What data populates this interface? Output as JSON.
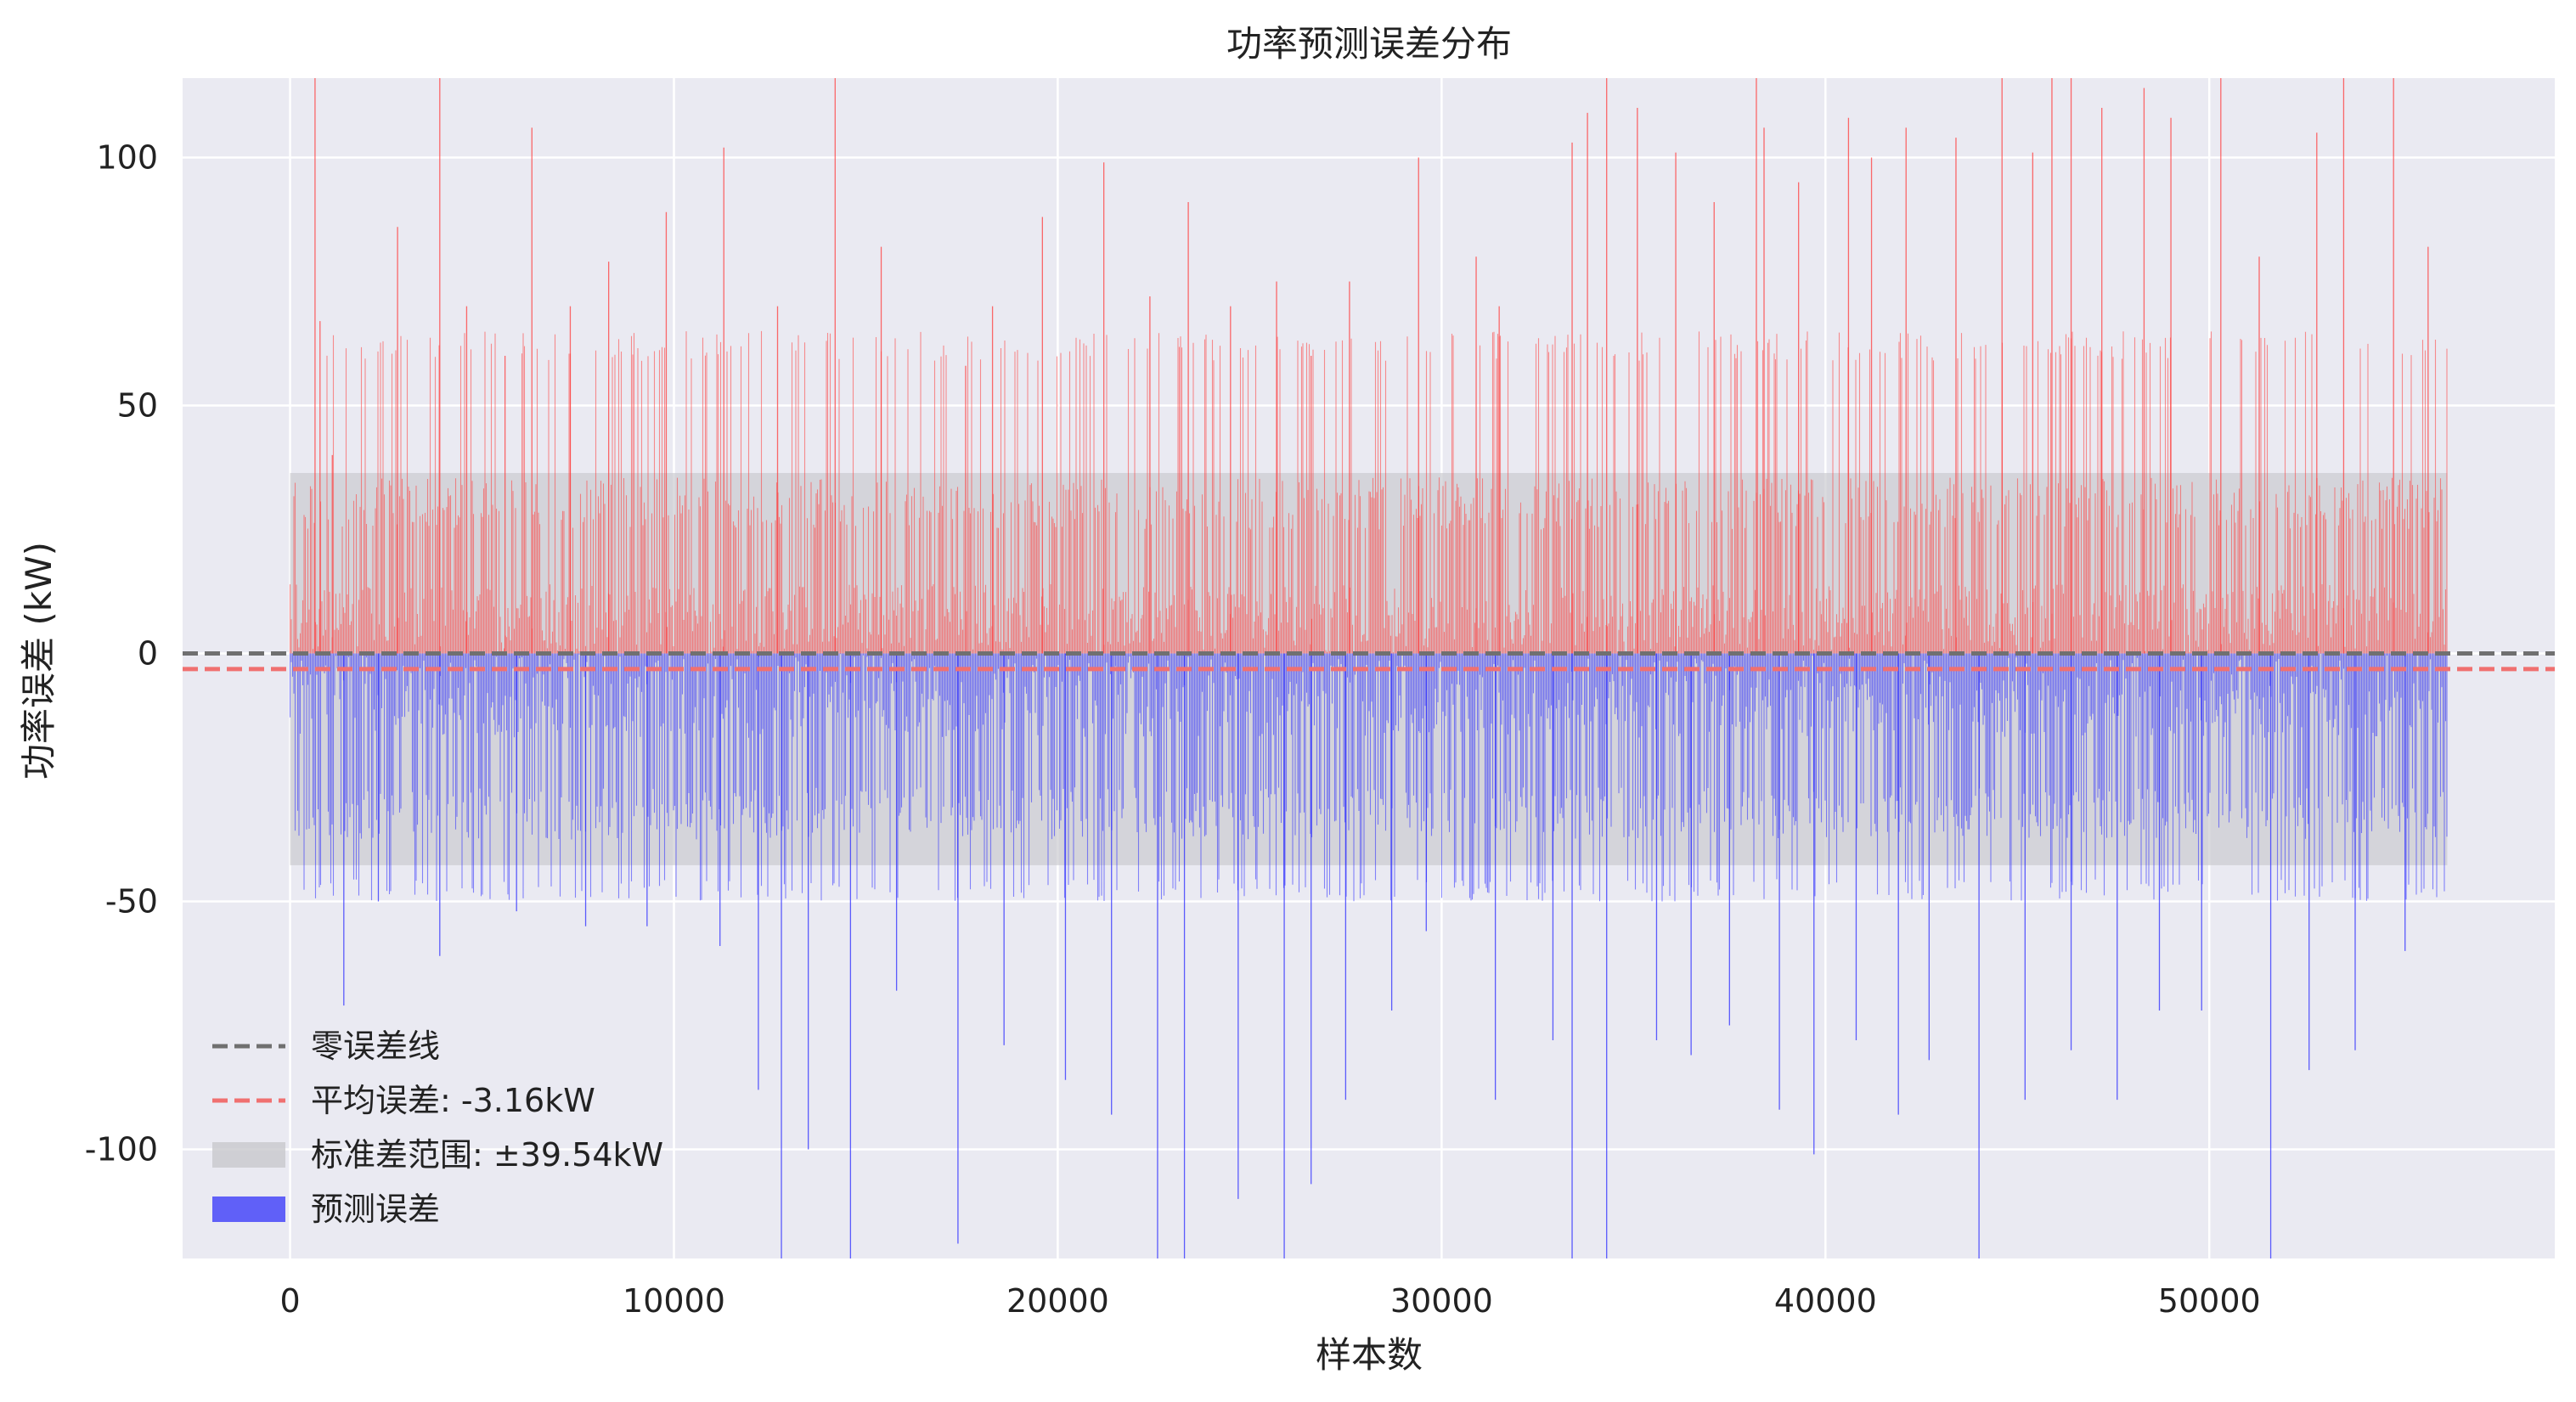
{
  "chart_data": {
    "type": "bar",
    "title": "功率预测误差分布",
    "xlabel": "样本数",
    "ylabel": "功率误差 (kW)",
    "xlim": [
      -2800,
      59000
    ],
    "ylim": [
      -122,
      116
    ],
    "xticks": [
      0,
      10000,
      20000,
      30000,
      40000,
      50000
    ],
    "xtick_labels": [
      "0",
      "10000",
      "20000",
      "30000",
      "40000",
      "50000"
    ],
    "yticks": [
      -100,
      -50,
      0,
      50,
      100
    ],
    "ytick_labels": [
      "-100",
      "-50",
      "0",
      "50",
      "100"
    ],
    "grid": true,
    "legend_position": "lower-left",
    "n_samples": 56200,
    "mean_error": -3.16,
    "std_error": 39.54,
    "std_band": [
      -42.7,
      36.38
    ],
    "colors": {
      "background": "#eaeaf2",
      "grid": "#ffffff",
      "positive_bar": "#ff3b3b",
      "negative_bar": "#2b2bff",
      "zero_line": "#707070",
      "mean_line": "#f07070",
      "std_band": "#c8c8cc",
      "legend_error_patch": "#6060f8"
    },
    "legend": [
      {
        "key": "zero",
        "label": "零误差线",
        "style": "dashed-gray"
      },
      {
        "key": "mean",
        "label": "平均误差: -3.16kW",
        "style": "dashed-red"
      },
      {
        "key": "std",
        "label": "标准差范围: ±39.54kW",
        "style": "gray-patch"
      },
      {
        "key": "err",
        "label": "预测误差",
        "style": "blue-patch"
      }
    ],
    "error_series": {
      "name": "预测误差",
      "positive_spikes": [
        [
          650,
          120
        ],
        [
          780,
          67
        ],
        [
          1100,
          40
        ],
        [
          2800,
          86
        ],
        [
          3900,
          116
        ],
        [
          4600,
          70
        ],
        [
          5600,
          60
        ],
        [
          6300,
          106
        ],
        [
          7300,
          70
        ],
        [
          8300,
          79
        ],
        [
          9800,
          89
        ],
        [
          11300,
          102
        ],
        [
          12700,
          70
        ],
        [
          14200,
          120
        ],
        [
          15400,
          82
        ],
        [
          17600,
          58
        ],
        [
          18300,
          70
        ],
        [
          19600,
          88
        ],
        [
          21200,
          99
        ],
        [
          22400,
          72
        ],
        [
          23400,
          91
        ],
        [
          24500,
          70
        ],
        [
          25700,
          75
        ],
        [
          26600,
          60
        ],
        [
          27600,
          75
        ],
        [
          29400,
          100
        ],
        [
          30900,
          80
        ],
        [
          31500,
          70
        ],
        [
          33400,
          103
        ],
        [
          33800,
          109
        ],
        [
          34300,
          120
        ],
        [
          35100,
          110
        ],
        [
          36100,
          101
        ],
        [
          37100,
          91
        ],
        [
          38200,
          116
        ],
        [
          38400,
          106
        ],
        [
          39300,
          95
        ],
        [
          40600,
          108
        ],
        [
          41200,
          100
        ],
        [
          42100,
          106
        ],
        [
          43400,
          104
        ],
        [
          44600,
          116
        ],
        [
          45400,
          101
        ],
        [
          45900,
          118
        ],
        [
          46400,
          116
        ],
        [
          47200,
          110
        ],
        [
          48300,
          114
        ],
        [
          49000,
          108
        ],
        [
          50300,
          120
        ],
        [
          51300,
          80
        ],
        [
          52800,
          105
        ],
        [
          53500,
          116
        ],
        [
          54800,
          120
        ],
        [
          55700,
          82
        ]
      ],
      "negative_spikes": [
        [
          1400,
          -71
        ],
        [
          2300,
          -50
        ],
        [
          3900,
          -61
        ],
        [
          5900,
          -52
        ],
        [
          7700,
          -55
        ],
        [
          9300,
          -55
        ],
        [
          11200,
          -59
        ],
        [
          12200,
          -88
        ],
        [
          12800,
          -123
        ],
        [
          13500,
          -100
        ],
        [
          14600,
          -123
        ],
        [
          15800,
          -68
        ],
        [
          17400,
          -119
        ],
        [
          18600,
          -79
        ],
        [
          20200,
          -86
        ],
        [
          21400,
          -93
        ],
        [
          22600,
          -123
        ],
        [
          23300,
          -123
        ],
        [
          24700,
          -110
        ],
        [
          25900,
          -123
        ],
        [
          26600,
          -107
        ],
        [
          27500,
          -90
        ],
        [
          28700,
          -72
        ],
        [
          29600,
          -56
        ],
        [
          31400,
          -90
        ],
        [
          32900,
          -78
        ],
        [
          33400,
          -123
        ],
        [
          34300,
          -123
        ],
        [
          35600,
          -78
        ],
        [
          36500,
          -81
        ],
        [
          37500,
          -75
        ],
        [
          38800,
          -92
        ],
        [
          39700,
          -101
        ],
        [
          40800,
          -78
        ],
        [
          41900,
          -93
        ],
        [
          42700,
          -82
        ],
        [
          44000,
          -123
        ],
        [
          45200,
          -90
        ],
        [
          46400,
          -80
        ],
        [
          47600,
          -90
        ],
        [
          48700,
          -72
        ],
        [
          49800,
          -72
        ],
        [
          51600,
          -123
        ],
        [
          52600,
          -84
        ],
        [
          53800,
          -80
        ],
        [
          55100,
          -60
        ]
      ]
    }
  }
}
